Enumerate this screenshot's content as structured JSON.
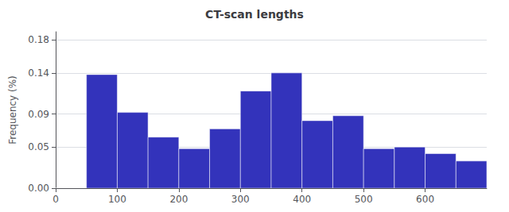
{
  "chart_data": {
    "type": "histogram",
    "title": "CT-scan lengths",
    "ylabel": "Frequency (%)",
    "bins": [
      0,
      50,
      100,
      150,
      200,
      250,
      300,
      350,
      400,
      450,
      500,
      550,
      600,
      650,
      700
    ],
    "values": [
      0.0,
      0.138,
      0.092,
      0.062,
      0.048,
      0.072,
      0.118,
      0.14,
      0.082,
      0.088,
      0.048,
      0.05,
      0.042,
      0.033
    ],
    "color": "#3333bb",
    "xlim": [
      0,
      700
    ],
    "xticks": [
      0,
      100,
      200,
      300,
      400,
      500,
      600
    ],
    "ylim": [
      0,
      0.19
    ],
    "yticks": [
      {
        "value": 0.0,
        "label": "0.00"
      },
      0.05,
      0.09,
      0.14,
      0.18
    ],
    "grid": true
  }
}
